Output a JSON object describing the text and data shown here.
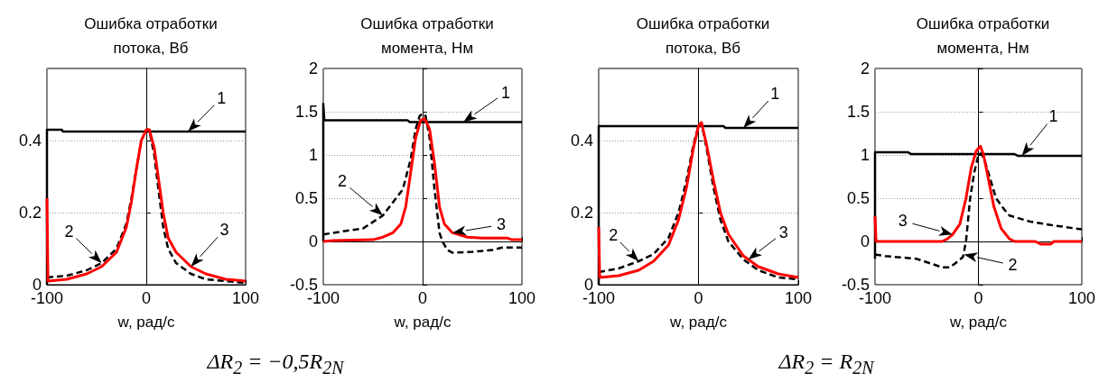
{
  "chart_data": [
    {
      "type": "line",
      "title": "Ошибка отработки\nпотока, Вб",
      "xlabel": "w, рад/с",
      "xlim": [
        -100,
        100
      ],
      "xticks": [
        -100,
        0,
        100
      ],
      "ylim": [
        0,
        0.6
      ],
      "yticks": [
        0,
        0.2,
        0.4
      ],
      "grid": true,
      "marker": "none",
      "series": [
        {
          "color": "#000000",
          "line_style": "solid",
          "x": [
            -100,
            -100,
            -85,
            -84,
            100
          ],
          "values": [
            0,
            0.43,
            0.43,
            0.425,
            0.425
          ]
        },
        {
          "color": "#000000",
          "line_style": "dashed",
          "x": [
            -100,
            -80,
            -60,
            -45,
            -30,
            -20,
            -15,
            -10,
            -5,
            0,
            3,
            8,
            12,
            17,
            22,
            30,
            45,
            60,
            80,
            100
          ],
          "values": [
            0.02,
            0.025,
            0.04,
            0.06,
            0.1,
            0.17,
            0.24,
            0.32,
            0.4,
            0.43,
            0.43,
            0.36,
            0.27,
            0.16,
            0.1,
            0.06,
            0.03,
            0.015,
            0.01,
            0.005
          ]
        },
        {
          "color": "#ff0000",
          "line_style": "solid",
          "x": [
            -100,
            -99,
            -80,
            -60,
            -45,
            -30,
            -20,
            -15,
            -10,
            -5,
            0,
            3,
            8,
            12,
            17,
            22,
            30,
            45,
            60,
            80,
            100
          ],
          "values": [
            0.24,
            0.01,
            0.015,
            0.03,
            0.05,
            0.09,
            0.16,
            0.23,
            0.32,
            0.4,
            0.43,
            0.43,
            0.38,
            0.3,
            0.2,
            0.13,
            0.09,
            0.05,
            0.03,
            0.015,
            0.01
          ]
        }
      ],
      "annotations": [
        {
          "text": "1",
          "x": 42,
          "y": 0.425
        },
        {
          "text": "2",
          "x": -45,
          "y": 0.06
        },
        {
          "text": "3",
          "x": 45,
          "y": 0.05
        },
        "ΔR$_{2}$ = −0,5R$_{2N}$"
      ]
    },
    {
      "type": "line",
      "title": "Ошибка отработки\nмомента, Нм",
      "xlabel": "w, рад/с",
      "xlim": [
        -100,
        100
      ],
      "xticks": [
        -100,
        0,
        100
      ],
      "ylim": [
        -0.5,
        2
      ],
      "yticks": [
        -0.5,
        0,
        0.5,
        1,
        1.5,
        2
      ],
      "grid": true,
      "marker": "none",
      "series": [
        {
          "color": "#000000",
          "line_style": "solid",
          "x": [
            -100,
            -100,
            -99,
            -15,
            -13,
            100
          ],
          "values": [
            0,
            1.59,
            1.4,
            1.4,
            1.38,
            1.38
          ]
        },
        {
          "color": "#000000",
          "line_style": "dashed",
          "x": [
            -100,
            -90,
            -60,
            -40,
            -30,
            -20,
            -12,
            -7,
            -3,
            0,
            3,
            7,
            12,
            17,
            20,
            25,
            30,
            50,
            70,
            80,
            100
          ],
          "values": [
            0.08,
            0.1,
            0.15,
            0.3,
            0.45,
            0.6,
            0.95,
            1.3,
            1.45,
            1.48,
            1.45,
            1.2,
            0.6,
            0.1,
            0,
            -0.1,
            -0.13,
            -0.12,
            -0.1,
            -0.07,
            -0.07
          ]
        },
        {
          "color": "#ff0000",
          "line_style": "solid",
          "x": [
            -100,
            -90,
            -50,
            -40,
            -30,
            -22,
            -17,
            -12,
            -7,
            -2,
            2,
            7,
            12,
            17,
            22,
            30,
            45,
            60,
            85,
            90,
            100
          ],
          "values": [
            0,
            0.01,
            0.02,
            0.05,
            0.1,
            0.2,
            0.4,
            0.8,
            1.2,
            1.4,
            1.42,
            1.3,
            0.9,
            0.4,
            0.2,
            0.1,
            0.05,
            0.04,
            0.04,
            0.02,
            0.02
          ]
        }
      ],
      "annotations": [
        {
          "text": "1",
          "x": 41,
          "y": 1.38
        },
        {
          "text": "2",
          "x": -40,
          "y": 0.3
        },
        {
          "text": "3",
          "x": 30,
          "y": 0.1
        }
      ]
    },
    {
      "type": "line",
      "title": "Ошибка отработки\nпотока, Вб",
      "xlabel": "w, рад/с",
      "xlim": [
        -100,
        100
      ],
      "xticks": [
        -100,
        0,
        100
      ],
      "ylim": [
        0,
        0.6
      ],
      "yticks": [
        0,
        0.2,
        0.4
      ],
      "grid": true,
      "marker": "none",
      "series": [
        {
          "color": "#000000",
          "line_style": "solid",
          "x": [
            -100,
            -100,
            25,
            27,
            100
          ],
          "values": [
            0,
            0.44,
            0.44,
            0.435,
            0.435
          ]
        },
        {
          "color": "#000000",
          "line_style": "dashed",
          "x": [
            -100,
            -80,
            -60,
            -45,
            -30,
            -20,
            -12,
            -5,
            0,
            3,
            8,
            15,
            22,
            30,
            45,
            60,
            80,
            100
          ],
          "values": [
            0.035,
            0.045,
            0.065,
            0.085,
            0.13,
            0.2,
            0.29,
            0.39,
            0.44,
            0.45,
            0.38,
            0.27,
            0.18,
            0.12,
            0.07,
            0.04,
            0.02,
            0.015
          ]
        },
        {
          "color": "#ff0000",
          "line_style": "solid",
          "x": [
            -100,
            -99,
            -80,
            -60,
            -45,
            -30,
            -20,
            -12,
            -5,
            0,
            3,
            8,
            15,
            22,
            30,
            45,
            60,
            80,
            100
          ],
          "values": [
            0.16,
            0.02,
            0.025,
            0.04,
            0.065,
            0.11,
            0.18,
            0.27,
            0.38,
            0.44,
            0.45,
            0.39,
            0.29,
            0.2,
            0.14,
            0.08,
            0.05,
            0.03,
            0.02
          ]
        }
      ],
      "annotations": [
        {
          "text": "1",
          "x": 45,
          "y": 0.435
        },
        {
          "text": "2",
          "x": -60,
          "y": 0.065
        },
        {
          "text": "3",
          "x": 50,
          "y": 0.07
        },
        "ΔR$_{2}$ = R$_{2N}$"
      ]
    },
    {
      "type": "line",
      "title": "Ошибка отработки\nмомента, Нм",
      "xlabel": "w, рад/с",
      "xlim": [
        -100,
        100
      ],
      "xticks": [
        -100,
        0,
        100
      ],
      "ylim": [
        -0.5,
        2
      ],
      "yticks": [
        -0.5,
        0,
        0.5,
        1,
        1.5,
        2
      ],
      "grid": true,
      "marker": "none",
      "series": [
        {
          "color": "#000000",
          "line_style": "solid",
          "x": [
            -100,
            -100,
            -68,
            -65,
            35,
            38,
            100
          ],
          "values": [
            -0.2,
            1.03,
            1.03,
            1.01,
            1.01,
            0.99,
            0.99
          ]
        },
        {
          "color": "#000000",
          "line_style": "dashed",
          "x": [
            -100,
            -90,
            -60,
            -45,
            -35,
            -28,
            -22,
            -15,
            -12,
            -8,
            -4,
            0,
            3,
            7,
            12,
            17,
            25,
            30,
            50,
            70,
            100
          ],
          "values": [
            -0.15,
            -0.17,
            -0.2,
            -0.26,
            -0.3,
            -0.3,
            -0.25,
            -0.18,
            0,
            0.5,
            0.8,
            1.0,
            1.02,
            0.9,
            0.7,
            0.5,
            0.37,
            0.3,
            0.23,
            0.19,
            0.14
          ]
        },
        {
          "color": "#ff0000",
          "line_style": "solid",
          "x": [
            -100,
            -99,
            -35,
            -30,
            -25,
            -18,
            -12,
            -7,
            -2,
            2,
            5,
            10,
            15,
            22,
            30,
            35,
            55,
            60,
            70,
            73,
            100
          ],
          "values": [
            0.29,
            0,
            0,
            0.03,
            0.08,
            0.2,
            0.5,
            0.85,
            1.05,
            1.1,
            1.0,
            0.7,
            0.4,
            0.15,
            0.03,
            0,
            0,
            -0.03,
            -0.03,
            0,
            0
          ]
        }
      ],
      "annotations": [
        {
          "text": "1",
          "x": 42,
          "y": 0.99
        },
        {
          "text": "3",
          "x": -25,
          "y": 0.08
        },
        {
          "text": "2",
          "x": -14,
          "y": -0.15
        }
      ]
    }
  ]
}
